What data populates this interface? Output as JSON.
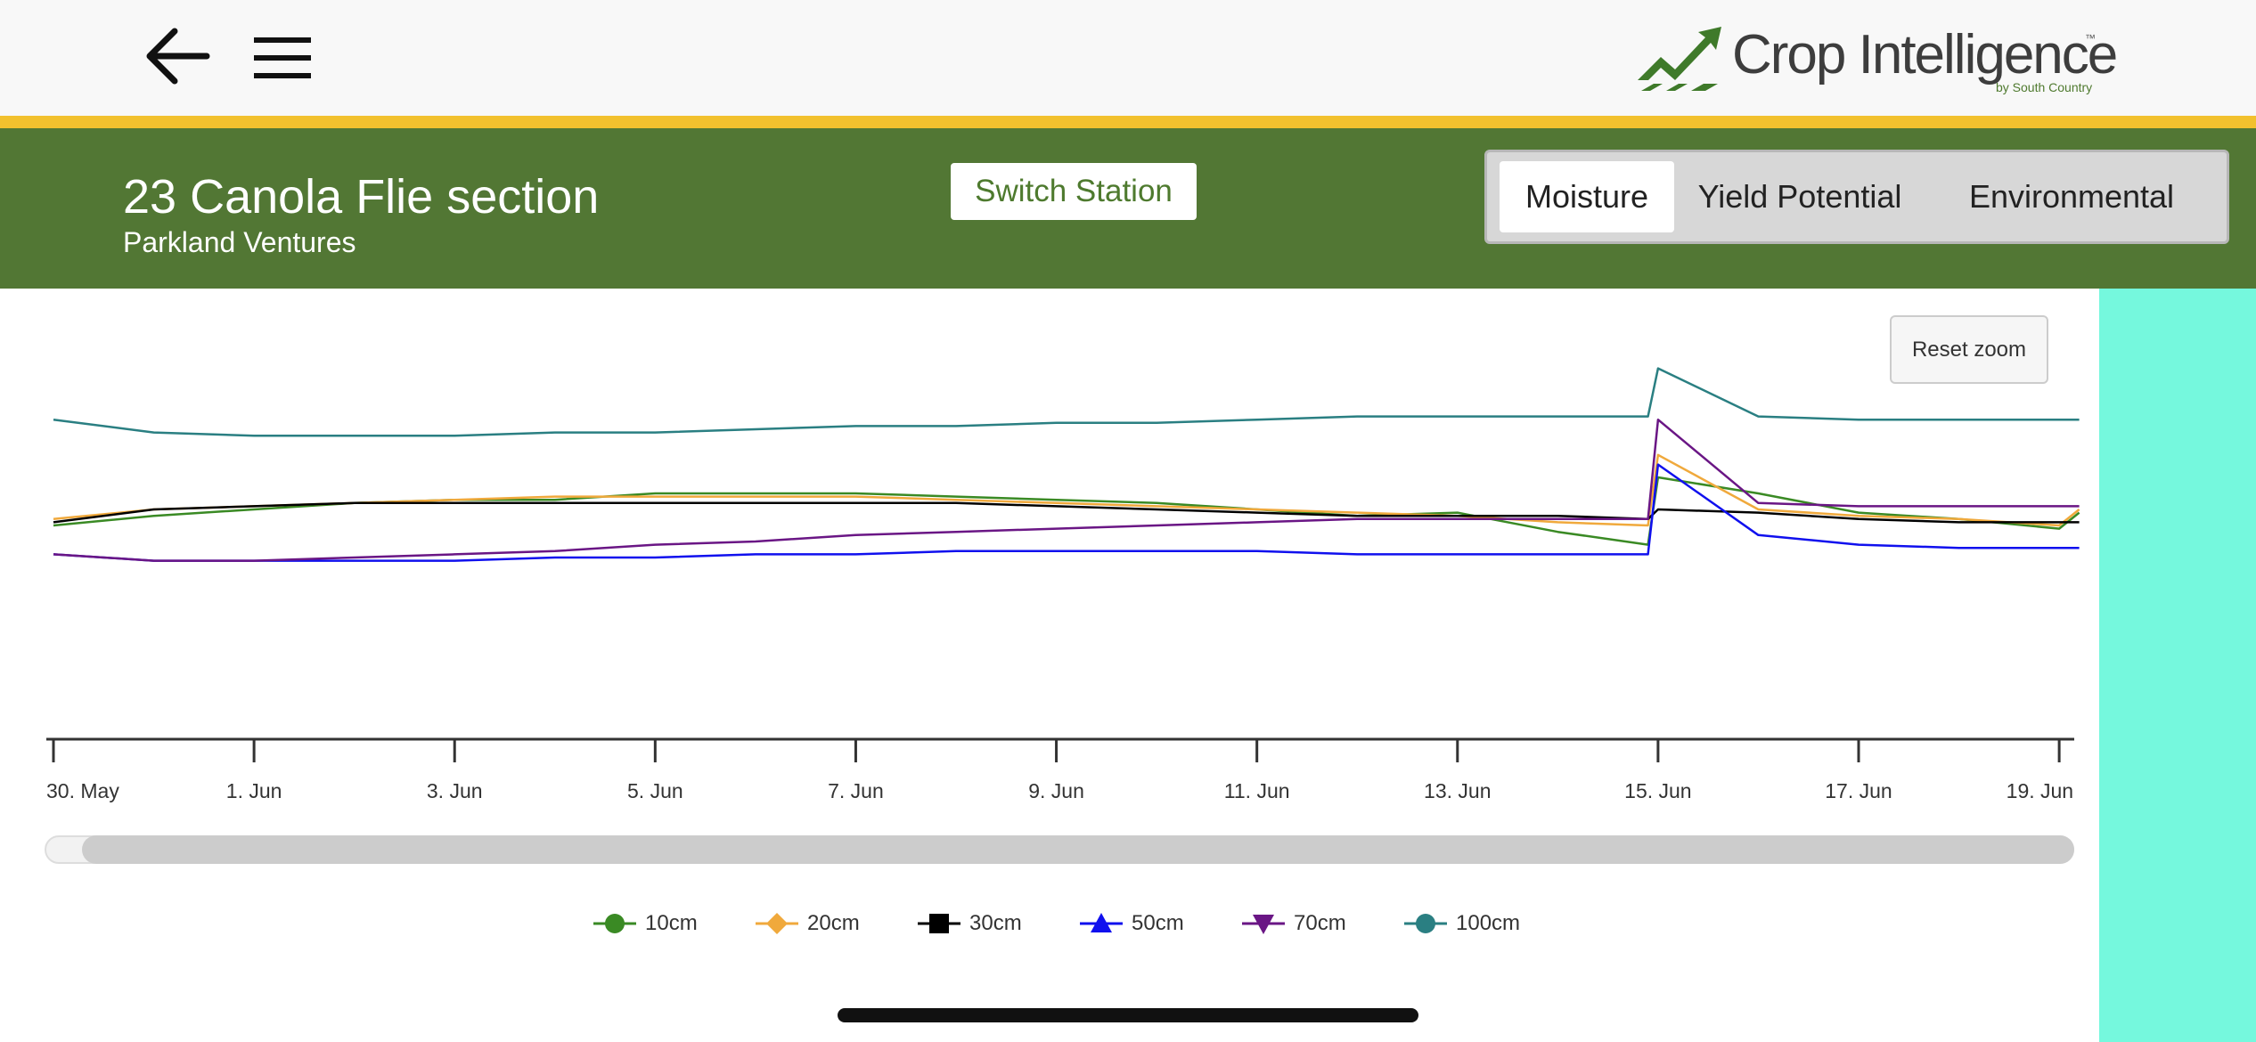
{
  "app": {
    "logo_main": "Crop Intelligence",
    "logo_tm": "™",
    "logo_sub": "by South Country"
  },
  "station": {
    "title": "23 Canola Flie section",
    "subtitle": "Parkland Ventures",
    "switch_label": "Switch Station"
  },
  "tabs": [
    {
      "label": "Moisture",
      "active": true
    },
    {
      "label": "Yield Potential",
      "active": false
    },
    {
      "label": "Environmental",
      "active": false
    }
  ],
  "reset_zoom_label": "Reset zoom",
  "colors": {
    "header_green": "#527734",
    "accent_yellow": "#f2c12e",
    "side_panel": "#75f8dd"
  },
  "icons": {
    "back": "arrow-left-icon",
    "menu": "hamburger-icon",
    "logo": "chart-arrow-logo-icon"
  },
  "chart_data": {
    "type": "line",
    "title": "",
    "xlabel": "",
    "ylabel": "",
    "x_ticks": [
      "30. May",
      "1. Jun",
      "3. Jun",
      "5. Jun",
      "7. Jun",
      "9. Jun",
      "11. Jun",
      "13. Jun",
      "15. Jun",
      "17. Jun",
      "19. Jun"
    ],
    "x": [
      "30. May",
      "31. May",
      "1. Jun",
      "2. Jun",
      "3. Jun",
      "4. Jun",
      "5. Jun",
      "6. Jun",
      "7. Jun",
      "8. Jun",
      "9. Jun",
      "10. Jun",
      "11. Jun",
      "12. Jun",
      "13. Jun",
      "14. Jun",
      "14.9 Jun",
      "15. Jun",
      "16. Jun",
      "17. Jun",
      "18. Jun",
      "19. Jun",
      "19.2 Jun"
    ],
    "ylim": [
      0,
      100
    ],
    "grid": false,
    "legend_position": "bottom",
    "series": [
      {
        "name": "10cm",
        "color": "#3a8a24",
        "marker": "circle",
        "values": [
          35,
          32,
          30,
          28,
          27,
          27,
          25,
          25,
          25,
          26,
          27,
          28,
          30,
          32,
          31,
          37,
          41,
          20,
          25,
          31,
          33,
          36,
          31
        ]
      },
      {
        "name": "20cm",
        "color": "#f0a93c",
        "marker": "diamond",
        "values": [
          33,
          30,
          29,
          28,
          27,
          26,
          26,
          26,
          26,
          27,
          28,
          29,
          30,
          31,
          32,
          34,
          35,
          13,
          30,
          32,
          33,
          35,
          30
        ]
      },
      {
        "name": "30cm",
        "color": "#000000",
        "marker": "square",
        "values": [
          34,
          30,
          29,
          28,
          28,
          28,
          28,
          28,
          28,
          28,
          29,
          30,
          31,
          32,
          32,
          32,
          33,
          30,
          31,
          33,
          34,
          34,
          34
        ]
      },
      {
        "name": "50cm",
        "color": "#1010ee",
        "marker": "triangle",
        "values": [
          44,
          46,
          46,
          46,
          46,
          45,
          45,
          44,
          44,
          43,
          43,
          43,
          43,
          44,
          44,
          44,
          44,
          16,
          38,
          41,
          42,
          42,
          42
        ]
      },
      {
        "name": "70cm",
        "color": "#6a1685",
        "marker": "triangle-down",
        "values": [
          44,
          46,
          46,
          45,
          44,
          43,
          41,
          40,
          38,
          37,
          36,
          35,
          34,
          33,
          33,
          33,
          33,
          2,
          28,
          29,
          29,
          29,
          29
        ]
      },
      {
        "name": "100cm",
        "color": "#2a7f82",
        "marker": "circle",
        "values": [
          2,
          6,
          7,
          7,
          7,
          6,
          6,
          5,
          4,
          4,
          3,
          3,
          2,
          1,
          1,
          1,
          1,
          -14,
          1,
          2,
          2,
          2,
          2
        ]
      }
    ]
  }
}
